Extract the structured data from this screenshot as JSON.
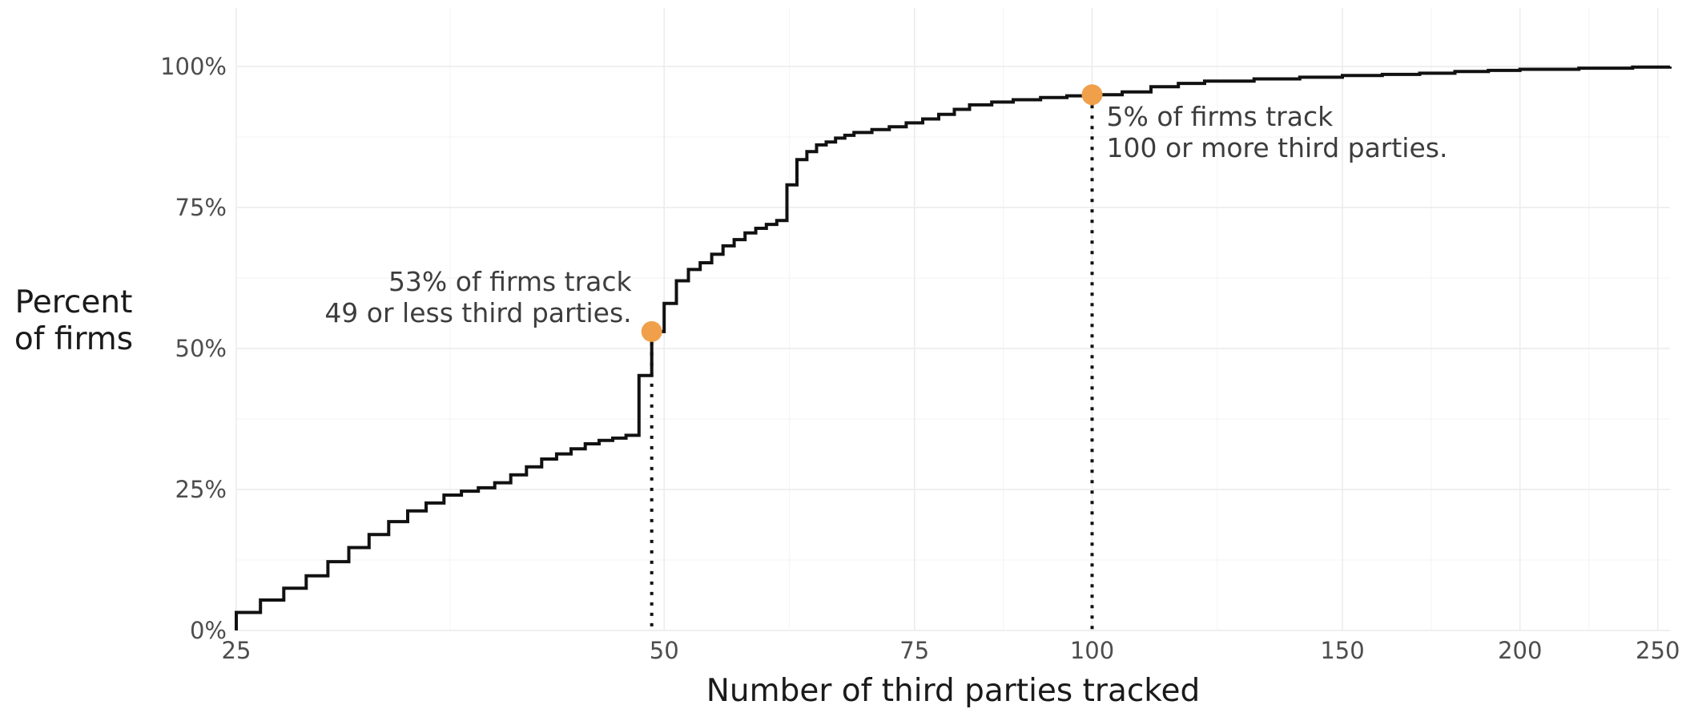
{
  "chart_data": {
    "type": "line",
    "subtype": "step-cdf",
    "xlabel": "Number of third parties tracked",
    "ylabel_lines": [
      "Percent",
      "of firms"
    ],
    "x_scale": "log",
    "xlim": [
      25,
      255
    ],
    "ylim": [
      0,
      1.05
    ],
    "x_ticks": [
      25,
      50,
      75,
      100,
      150,
      200,
      250
    ],
    "x_tick_labels": [
      "25",
      "50",
      "75",
      "100",
      "150",
      "200",
      "250"
    ],
    "y_ticks": [
      0,
      0.25,
      0.5,
      0.75,
      1.0
    ],
    "y_tick_labels": [
      "0%",
      "25%",
      "50%",
      "75%",
      "100%"
    ],
    "grid": true,
    "series": [
      {
        "x": [
          25,
          26,
          27,
          28,
          29,
          30,
          31,
          32,
          33,
          34,
          35,
          36,
          37,
          38,
          39,
          40,
          41,
          42,
          43,
          44,
          45,
          46,
          47,
          48,
          49,
          50,
          51,
          52,
          53,
          54,
          55,
          56,
          57,
          58,
          59,
          60,
          61,
          62,
          63,
          64,
          65,
          66,
          67,
          68,
          70,
          72,
          74,
          76,
          78,
          80,
          82,
          85,
          88,
          92,
          96,
          100,
          105,
          110,
          115,
          120,
          130,
          140,
          150,
          160,
          170,
          180,
          190,
          200,
          220,
          240,
          255
        ],
        "y": [
          0.032,
          0.054,
          0.075,
          0.097,
          0.122,
          0.147,
          0.17,
          0.193,
          0.212,
          0.226,
          0.24,
          0.247,
          0.253,
          0.262,
          0.276,
          0.29,
          0.304,
          0.313,
          0.322,
          0.331,
          0.337,
          0.341,
          0.346,
          0.452,
          0.53,
          0.58,
          0.62,
          0.64,
          0.652,
          0.667,
          0.682,
          0.693,
          0.705,
          0.713,
          0.72,
          0.727,
          0.79,
          0.835,
          0.849,
          0.861,
          0.866,
          0.873,
          0.878,
          0.883,
          0.888,
          0.893,
          0.9,
          0.907,
          0.915,
          0.924,
          0.932,
          0.937,
          0.941,
          0.945,
          0.948,
          0.95,
          0.955,
          0.964,
          0.97,
          0.974,
          0.978,
          0.981,
          0.984,
          0.986,
          0.988,
          0.991,
          0.993,
          0.995,
          0.997,
          0.999,
          1.0
        ]
      }
    ],
    "highlights": [
      {
        "x": 49,
        "y": 0.53,
        "color": "#f0a04b"
      },
      {
        "x": 100,
        "y": 0.95,
        "color": "#f0a04b"
      }
    ],
    "annotations": [
      {
        "lines": [
          "53% of firms track",
          "49 or less third parties."
        ],
        "anchor": "end"
      },
      {
        "lines": [
          "5% of firms track",
          "100 or more third parties."
        ],
        "anchor": "start"
      }
    ],
    "colors": {
      "line": "#111111",
      "highlight": "#f0a04b",
      "grid": "#ececec"
    }
  }
}
